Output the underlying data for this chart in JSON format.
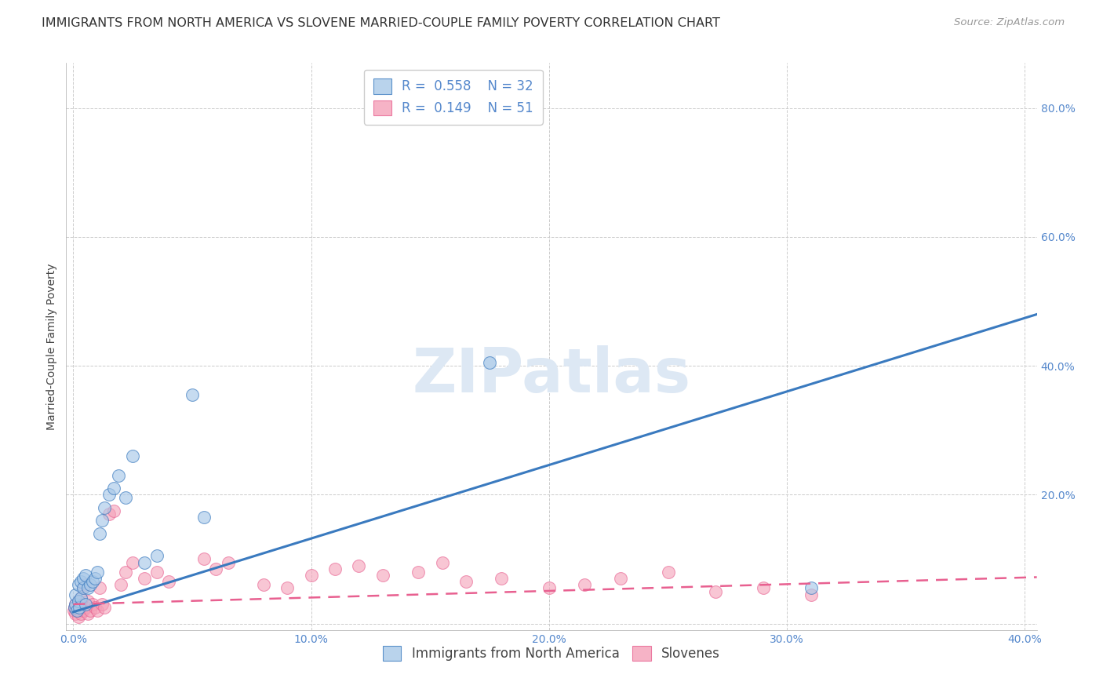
{
  "title": "IMMIGRANTS FROM NORTH AMERICA VS SLOVENE MARRIED-COUPLE FAMILY POVERTY CORRELATION CHART",
  "source": "Source: ZipAtlas.com",
  "xlabel_blue": "Immigrants from North America",
  "xlabel_pink": "Slovenes",
  "ylabel": "Married-Couple Family Poverty",
  "xlim": [
    -0.003,
    0.405
  ],
  "ylim": [
    -0.01,
    0.87
  ],
  "xticks": [
    0.0,
    0.1,
    0.2,
    0.3,
    0.4
  ],
  "yticks": [
    0.0,
    0.2,
    0.4,
    0.6,
    0.8
  ],
  "ytick_labels": [
    "",
    "20.0%",
    "40.0%",
    "60.0%",
    "80.0%"
  ],
  "xtick_labels": [
    "0.0%",
    "10.0%",
    "20.0%",
    "30.0%",
    "40.0%"
  ],
  "blue_R": 0.558,
  "blue_N": 32,
  "pink_R": 0.149,
  "pink_N": 51,
  "blue_color": "#a8c8e8",
  "pink_color": "#f4a0b8",
  "blue_line_color": "#3a7abf",
  "pink_line_color": "#e86090",
  "background_color": "#ffffff",
  "grid_color": "#cccccc",
  "title_fontsize": 11.5,
  "axis_label_fontsize": 10,
  "tick_fontsize": 10,
  "legend_fontsize": 12,
  "source_fontsize": 9.5,
  "blue_scatter_x": [
    0.0005,
    0.001,
    0.001,
    0.0015,
    0.002,
    0.002,
    0.0025,
    0.003,
    0.003,
    0.004,
    0.004,
    0.005,
    0.005,
    0.006,
    0.007,
    0.008,
    0.009,
    0.01,
    0.011,
    0.012,
    0.013,
    0.015,
    0.017,
    0.019,
    0.022,
    0.025,
    0.03,
    0.035,
    0.05,
    0.055,
    0.175,
    0.31
  ],
  "blue_scatter_y": [
    0.025,
    0.03,
    0.045,
    0.02,
    0.035,
    0.06,
    0.025,
    0.04,
    0.065,
    0.055,
    0.07,
    0.03,
    0.075,
    0.055,
    0.06,
    0.065,
    0.07,
    0.08,
    0.14,
    0.16,
    0.18,
    0.2,
    0.21,
    0.23,
    0.195,
    0.26,
    0.095,
    0.105,
    0.355,
    0.165,
    0.405,
    0.055
  ],
  "pink_scatter_x": [
    0.0002,
    0.0005,
    0.001,
    0.001,
    0.0015,
    0.002,
    0.002,
    0.0025,
    0.003,
    0.003,
    0.004,
    0.004,
    0.005,
    0.005,
    0.006,
    0.006,
    0.007,
    0.008,
    0.009,
    0.01,
    0.011,
    0.012,
    0.013,
    0.015,
    0.017,
    0.02,
    0.022,
    0.025,
    0.03,
    0.035,
    0.04,
    0.055,
    0.06,
    0.065,
    0.08,
    0.09,
    0.1,
    0.11,
    0.12,
    0.13,
    0.145,
    0.155,
    0.165,
    0.18,
    0.2,
    0.215,
    0.23,
    0.25,
    0.27,
    0.29,
    0.31
  ],
  "pink_scatter_y": [
    0.02,
    0.025,
    0.015,
    0.03,
    0.02,
    0.01,
    0.035,
    0.025,
    0.015,
    0.04,
    0.02,
    0.055,
    0.025,
    0.06,
    0.015,
    0.035,
    0.02,
    0.03,
    0.025,
    0.02,
    0.055,
    0.03,
    0.025,
    0.17,
    0.175,
    0.06,
    0.08,
    0.095,
    0.07,
    0.08,
    0.065,
    0.1,
    0.085,
    0.095,
    0.06,
    0.055,
    0.075,
    0.085,
    0.09,
    0.075,
    0.08,
    0.095,
    0.065,
    0.07,
    0.055,
    0.06,
    0.07,
    0.08,
    0.05,
    0.055,
    0.045
  ],
  "blue_line_x0": 0.0,
  "blue_line_y0": 0.018,
  "blue_line_x1": 0.405,
  "blue_line_y1": 0.48,
  "pink_line_x0": 0.0,
  "pink_line_y0": 0.03,
  "pink_line_x1": 0.405,
  "pink_line_y1": 0.072
}
